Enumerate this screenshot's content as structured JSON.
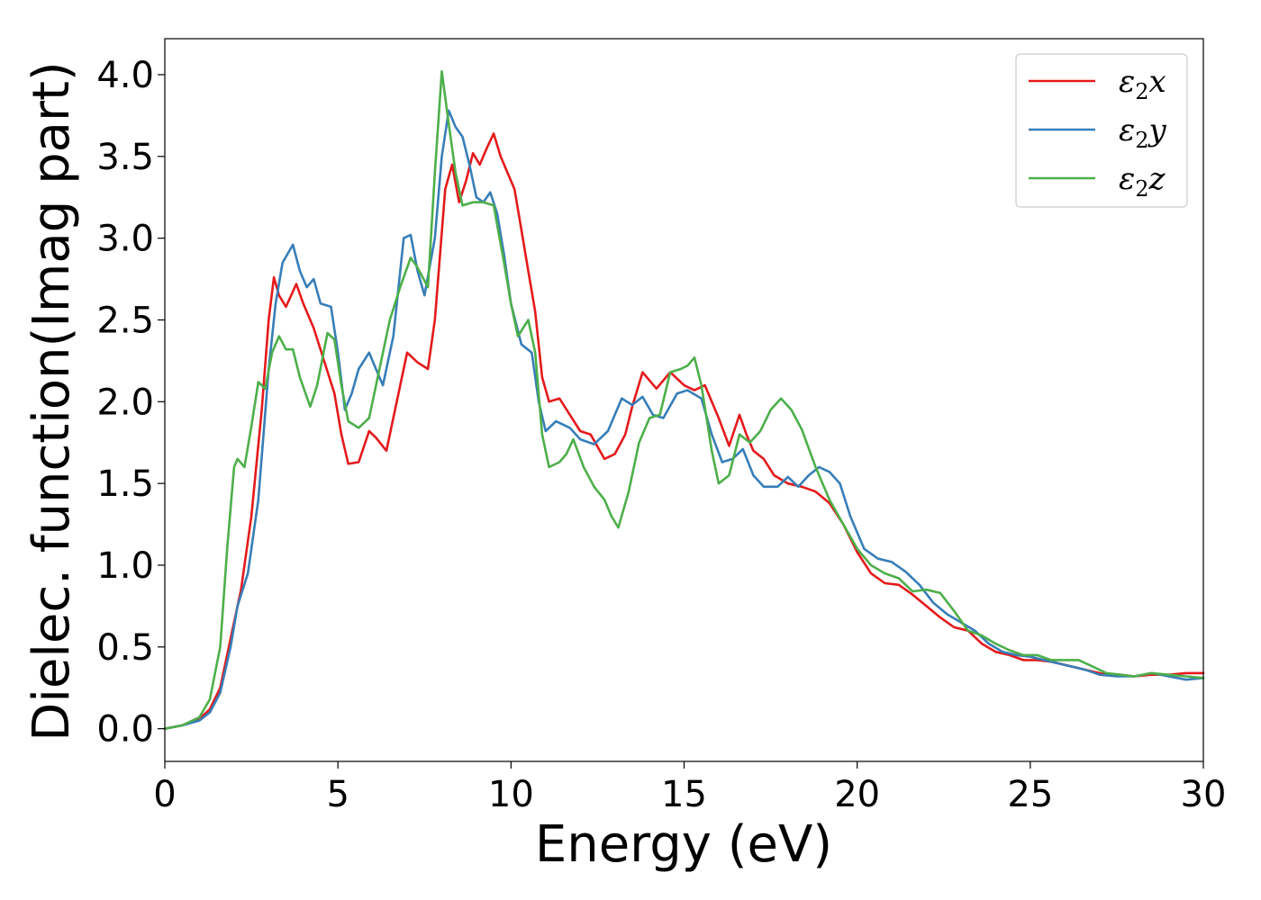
{
  "chart_data": {
    "type": "line",
    "title": "",
    "xlabel": "Energy (eV)",
    "ylabel": "Dielec. function(Imag part)",
    "xlim": [
      0,
      30
    ],
    "ylim": [
      -0.2,
      4.22
    ],
    "xticks": [
      0,
      5,
      10,
      15,
      20,
      25,
      30
    ],
    "xtick_labels": [
      "0",
      "5",
      "10",
      "15",
      "20",
      "25",
      "30"
    ],
    "yticks": [
      0.0,
      0.5,
      1.0,
      1.5,
      2.0,
      2.5,
      3.0,
      3.5,
      4.0
    ],
    "ytick_labels": [
      "0.0",
      "0.5",
      "1.0",
      "1.5",
      "2.0",
      "2.5",
      "3.0",
      "3.5",
      "4.0"
    ],
    "grid": false,
    "legend_position": "top-right",
    "series": [
      {
        "name": "ε2x",
        "legend_main": "ε",
        "legend_sub": "2",
        "legend_tail": "x",
        "color": "#e41a1c",
        "points": [
          [
            0,
            0
          ],
          [
            0.5,
            0.02
          ],
          [
            1.0,
            0.06
          ],
          [
            1.3,
            0.12
          ],
          [
            1.6,
            0.25
          ],
          [
            1.9,
            0.55
          ],
          [
            2.2,
            0.85
          ],
          [
            2.5,
            1.3
          ],
          [
            2.8,
            1.95
          ],
          [
            3.0,
            2.5
          ],
          [
            3.15,
            2.76
          ],
          [
            3.3,
            2.65
          ],
          [
            3.5,
            2.58
          ],
          [
            3.8,
            2.72
          ],
          [
            4.0,
            2.6
          ],
          [
            4.3,
            2.45
          ],
          [
            4.6,
            2.25
          ],
          [
            4.9,
            2.05
          ],
          [
            5.1,
            1.8
          ],
          [
            5.3,
            1.62
          ],
          [
            5.6,
            1.63
          ],
          [
            5.9,
            1.82
          ],
          [
            6.1,
            1.78
          ],
          [
            6.4,
            1.7
          ],
          [
            6.7,
            2.0
          ],
          [
            7.0,
            2.3
          ],
          [
            7.3,
            2.24
          ],
          [
            7.6,
            2.2
          ],
          [
            7.8,
            2.5
          ],
          [
            8.1,
            3.3
          ],
          [
            8.3,
            3.45
          ],
          [
            8.5,
            3.22
          ],
          [
            8.7,
            3.35
          ],
          [
            8.9,
            3.52
          ],
          [
            9.1,
            3.45
          ],
          [
            9.3,
            3.55
          ],
          [
            9.5,
            3.64
          ],
          [
            9.7,
            3.5
          ],
          [
            9.9,
            3.4
          ],
          [
            10.1,
            3.3
          ],
          [
            10.3,
            3.05
          ],
          [
            10.5,
            2.8
          ],
          [
            10.7,
            2.55
          ],
          [
            10.9,
            2.15
          ],
          [
            11.1,
            2.0
          ],
          [
            11.4,
            2.02
          ],
          [
            11.7,
            1.92
          ],
          [
            12.0,
            1.82
          ],
          [
            12.3,
            1.8
          ],
          [
            12.7,
            1.65
          ],
          [
            13.0,
            1.68
          ],
          [
            13.3,
            1.8
          ],
          [
            13.5,
            1.97
          ],
          [
            13.8,
            2.18
          ],
          [
            14.2,
            2.08
          ],
          [
            14.6,
            2.18
          ],
          [
            15.0,
            2.1
          ],
          [
            15.3,
            2.07
          ],
          [
            15.6,
            2.1
          ],
          [
            16.0,
            1.9
          ],
          [
            16.3,
            1.73
          ],
          [
            16.6,
            1.92
          ],
          [
            16.8,
            1.8
          ],
          [
            17.0,
            1.7
          ],
          [
            17.3,
            1.65
          ],
          [
            17.6,
            1.55
          ],
          [
            18.0,
            1.5
          ],
          [
            18.4,
            1.48
          ],
          [
            18.8,
            1.45
          ],
          [
            19.2,
            1.38
          ],
          [
            19.6,
            1.25
          ],
          [
            20.0,
            1.08
          ],
          [
            20.4,
            0.95
          ],
          [
            20.8,
            0.89
          ],
          [
            21.2,
            0.88
          ],
          [
            21.6,
            0.82
          ],
          [
            22.0,
            0.75
          ],
          [
            22.4,
            0.68
          ],
          [
            22.8,
            0.62
          ],
          [
            23.2,
            0.6
          ],
          [
            23.6,
            0.52
          ],
          [
            24.0,
            0.47
          ],
          [
            24.4,
            0.45
          ],
          [
            24.8,
            0.42
          ],
          [
            25.2,
            0.42
          ],
          [
            25.6,
            0.41
          ],
          [
            26.0,
            0.39
          ],
          [
            26.4,
            0.37
          ],
          [
            26.8,
            0.35
          ],
          [
            27.2,
            0.33
          ],
          [
            27.6,
            0.33
          ],
          [
            28.0,
            0.32
          ],
          [
            28.5,
            0.33
          ],
          [
            29.0,
            0.33
          ],
          [
            29.5,
            0.34
          ],
          [
            30.0,
            0.34
          ]
        ]
      },
      {
        "name": "ε2y",
        "legend_main": "ε",
        "legend_sub": "2",
        "legend_tail": "y",
        "color": "#377eb8",
        "points": [
          [
            0,
            0
          ],
          [
            0.5,
            0.02
          ],
          [
            1.0,
            0.05
          ],
          [
            1.3,
            0.1
          ],
          [
            1.6,
            0.22
          ],
          [
            1.9,
            0.5
          ],
          [
            2.1,
            0.75
          ],
          [
            2.4,
            0.95
          ],
          [
            2.7,
            1.4
          ],
          [
            3.0,
            2.2
          ],
          [
            3.2,
            2.6
          ],
          [
            3.4,
            2.85
          ],
          [
            3.7,
            2.96
          ],
          [
            3.9,
            2.8
          ],
          [
            4.1,
            2.7
          ],
          [
            4.3,
            2.75
          ],
          [
            4.5,
            2.6
          ],
          [
            4.8,
            2.58
          ],
          [
            5.0,
            2.3
          ],
          [
            5.2,
            1.95
          ],
          [
            5.4,
            2.05
          ],
          [
            5.6,
            2.2
          ],
          [
            5.9,
            2.3
          ],
          [
            6.1,
            2.2
          ],
          [
            6.3,
            2.1
          ],
          [
            6.6,
            2.4
          ],
          [
            6.9,
            3.0
          ],
          [
            7.1,
            3.02
          ],
          [
            7.3,
            2.8
          ],
          [
            7.5,
            2.65
          ],
          [
            7.8,
            3.0
          ],
          [
            8.0,
            3.5
          ],
          [
            8.2,
            3.78
          ],
          [
            8.4,
            3.68
          ],
          [
            8.6,
            3.62
          ],
          [
            8.8,
            3.45
          ],
          [
            9.0,
            3.25
          ],
          [
            9.2,
            3.22
          ],
          [
            9.4,
            3.28
          ],
          [
            9.6,
            3.15
          ],
          [
            9.8,
            2.9
          ],
          [
            10.0,
            2.6
          ],
          [
            10.3,
            2.35
          ],
          [
            10.6,
            2.3
          ],
          [
            10.8,
            2.0
          ],
          [
            11.0,
            1.82
          ],
          [
            11.3,
            1.88
          ],
          [
            11.7,
            1.84
          ],
          [
            12.0,
            1.77
          ],
          [
            12.4,
            1.74
          ],
          [
            12.8,
            1.82
          ],
          [
            13.2,
            2.02
          ],
          [
            13.5,
            1.98
          ],
          [
            13.8,
            2.03
          ],
          [
            14.1,
            1.92
          ],
          [
            14.4,
            1.9
          ],
          [
            14.8,
            2.05
          ],
          [
            15.1,
            2.07
          ],
          [
            15.5,
            2.02
          ],
          [
            15.8,
            1.8
          ],
          [
            16.1,
            1.63
          ],
          [
            16.4,
            1.65
          ],
          [
            16.7,
            1.71
          ],
          [
            17.0,
            1.55
          ],
          [
            17.3,
            1.48
          ],
          [
            17.7,
            1.48
          ],
          [
            18.0,
            1.54
          ],
          [
            18.3,
            1.48
          ],
          [
            18.6,
            1.55
          ],
          [
            18.9,
            1.6
          ],
          [
            19.2,
            1.57
          ],
          [
            19.5,
            1.5
          ],
          [
            19.8,
            1.3
          ],
          [
            20.2,
            1.1
          ],
          [
            20.6,
            1.04
          ],
          [
            21.0,
            1.02
          ],
          [
            21.4,
            0.96
          ],
          [
            21.8,
            0.88
          ],
          [
            22.2,
            0.77
          ],
          [
            22.6,
            0.7
          ],
          [
            23.0,
            0.65
          ],
          [
            23.4,
            0.6
          ],
          [
            23.8,
            0.52
          ],
          [
            24.2,
            0.47
          ],
          [
            24.6,
            0.45
          ],
          [
            25.0,
            0.44
          ],
          [
            25.4,
            0.42
          ],
          [
            25.8,
            0.4
          ],
          [
            26.2,
            0.38
          ],
          [
            26.6,
            0.36
          ],
          [
            27.0,
            0.33
          ],
          [
            27.5,
            0.32
          ],
          [
            28.0,
            0.32
          ],
          [
            28.5,
            0.34
          ],
          [
            29.0,
            0.32
          ],
          [
            29.5,
            0.3
          ],
          [
            30.0,
            0.31
          ]
        ]
      },
      {
        "name": "ε2z",
        "legend_main": "ε",
        "legend_sub": "2",
        "legend_tail": "z",
        "color": "#4daf4a",
        "points": [
          [
            0,
            0
          ],
          [
            0.5,
            0.02
          ],
          [
            1.0,
            0.07
          ],
          [
            1.3,
            0.18
          ],
          [
            1.6,
            0.5
          ],
          [
            1.8,
            1.1
          ],
          [
            2.0,
            1.6
          ],
          [
            2.1,
            1.65
          ],
          [
            2.3,
            1.6
          ],
          [
            2.5,
            1.85
          ],
          [
            2.7,
            2.12
          ],
          [
            2.9,
            2.08
          ],
          [
            3.1,
            2.3
          ],
          [
            3.3,
            2.4
          ],
          [
            3.5,
            2.32
          ],
          [
            3.7,
            2.32
          ],
          [
            3.9,
            2.15
          ],
          [
            4.2,
            1.97
          ],
          [
            4.4,
            2.1
          ],
          [
            4.7,
            2.42
          ],
          [
            4.9,
            2.38
          ],
          [
            5.1,
            2.1
          ],
          [
            5.3,
            1.88
          ],
          [
            5.6,
            1.84
          ],
          [
            5.9,
            1.9
          ],
          [
            6.2,
            2.2
          ],
          [
            6.5,
            2.5
          ],
          [
            6.8,
            2.7
          ],
          [
            7.1,
            2.88
          ],
          [
            7.3,
            2.82
          ],
          [
            7.6,
            2.7
          ],
          [
            7.8,
            3.4
          ],
          [
            8.0,
            4.02
          ],
          [
            8.2,
            3.7
          ],
          [
            8.4,
            3.4
          ],
          [
            8.6,
            3.2
          ],
          [
            8.9,
            3.22
          ],
          [
            9.2,
            3.22
          ],
          [
            9.5,
            3.2
          ],
          [
            9.8,
            2.85
          ],
          [
            10.0,
            2.6
          ],
          [
            10.2,
            2.4
          ],
          [
            10.5,
            2.5
          ],
          [
            10.7,
            2.3
          ],
          [
            10.9,
            1.8
          ],
          [
            11.1,
            1.6
          ],
          [
            11.4,
            1.63
          ],
          [
            11.6,
            1.68
          ],
          [
            11.8,
            1.77
          ],
          [
            12.1,
            1.6
          ],
          [
            12.4,
            1.48
          ],
          [
            12.7,
            1.4
          ],
          [
            12.9,
            1.3
          ],
          [
            13.1,
            1.23
          ],
          [
            13.4,
            1.45
          ],
          [
            13.7,
            1.75
          ],
          [
            14.0,
            1.9
          ],
          [
            14.3,
            1.92
          ],
          [
            14.6,
            2.18
          ],
          [
            14.9,
            2.2
          ],
          [
            15.1,
            2.22
          ],
          [
            15.3,
            2.27
          ],
          [
            15.5,
            2.1
          ],
          [
            15.8,
            1.7
          ],
          [
            16.0,
            1.5
          ],
          [
            16.3,
            1.55
          ],
          [
            16.6,
            1.8
          ],
          [
            16.9,
            1.75
          ],
          [
            17.2,
            1.82
          ],
          [
            17.5,
            1.95
          ],
          [
            17.8,
            2.02
          ],
          [
            18.1,
            1.95
          ],
          [
            18.4,
            1.83
          ],
          [
            18.8,
            1.6
          ],
          [
            19.2,
            1.4
          ],
          [
            19.6,
            1.25
          ],
          [
            20.0,
            1.1
          ],
          [
            20.4,
            1.0
          ],
          [
            20.8,
            0.95
          ],
          [
            21.2,
            0.92
          ],
          [
            21.6,
            0.84
          ],
          [
            22.0,
            0.85
          ],
          [
            22.4,
            0.83
          ],
          [
            22.8,
            0.72
          ],
          [
            23.2,
            0.6
          ],
          [
            23.6,
            0.57
          ],
          [
            24.0,
            0.52
          ],
          [
            24.4,
            0.48
          ],
          [
            24.8,
            0.45
          ],
          [
            25.2,
            0.45
          ],
          [
            25.6,
            0.42
          ],
          [
            26.0,
            0.42
          ],
          [
            26.4,
            0.42
          ],
          [
            26.8,
            0.38
          ],
          [
            27.2,
            0.34
          ],
          [
            27.6,
            0.33
          ],
          [
            28.0,
            0.32
          ],
          [
            28.5,
            0.34
          ],
          [
            29.0,
            0.33
          ],
          [
            29.5,
            0.32
          ],
          [
            30.0,
            0.31
          ]
        ]
      }
    ]
  }
}
